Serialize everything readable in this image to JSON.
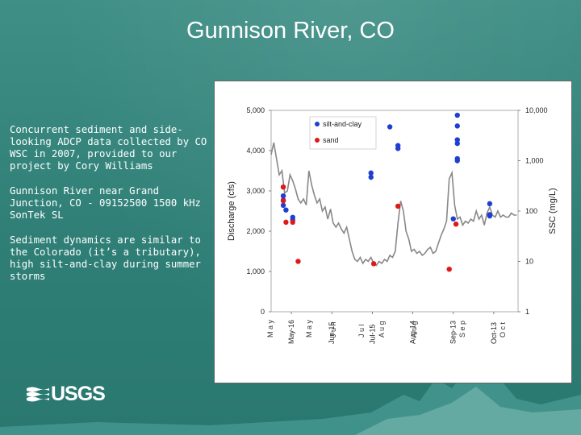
{
  "slide": {
    "title": "Gunnison River, CO",
    "bullets": [
      "Concurrent sediment and side-looking ADCP data collected by CO WSC in 2007, provided to our project by Cory Williams",
      "Gunnison River near Grand Junction, CO - 09152500 1500 kHz SonTek SL",
      "Sediment dynamics are similar to the Colorado (it’s a tributary), high silt-and-clay during summer storms"
    ],
    "logo": "USGS"
  },
  "colors": {
    "background": "#2f7f77",
    "line": "#888888",
    "silt_and_clay": "#1f3fd0",
    "sand": "#e01818"
  },
  "chart_data": {
    "type": "line",
    "title": "",
    "ylabel": "Discharge (cfs)",
    "y2label": "SSC (mg/L)",
    "ylim": [
      0,
      5000
    ],
    "y2lim": [
      1,
      10000
    ],
    "y2scale": "log",
    "yticks": [
      "0",
      "1,000",
      "2,000",
      "3,000",
      "4,000",
      "5,000"
    ],
    "y2ticks": [
      "1",
      "10",
      "100",
      "1,000",
      "10,000"
    ],
    "xlim": [
      "2007-05-01",
      "2007-10-31"
    ],
    "xtick_labels": [
      {
        "x": "2007-05-16",
        "label": "May-16"
      },
      {
        "x": "2007-06-15",
        "label": "Jun-15"
      },
      {
        "x": "2007-07-15",
        "label": "Jul-15"
      },
      {
        "x": "2007-08-14",
        "label": "Aug-14"
      },
      {
        "x": "2007-09-13",
        "label": "Sep-13"
      },
      {
        "x": "2007-10-13",
        "label": "Oct-13"
      }
    ],
    "xtick_overlap_text": [
      "M a y",
      "M a y",
      "J u n",
      "J u l",
      "A u g",
      "A u g",
      "S e p",
      "O c t"
    ],
    "legend": {
      "position": "top-left",
      "entries": [
        "silt-and-clay",
        "sand"
      ]
    },
    "grid": false,
    "series": [
      {
        "name": "Discharge",
        "type": "line",
        "axis": "left",
        "x": [
          "2007-05-01",
          "2007-05-03",
          "2007-05-05",
          "2007-05-07",
          "2007-05-09",
          "2007-05-11",
          "2007-05-13",
          "2007-05-15",
          "2007-05-17",
          "2007-05-19",
          "2007-05-21",
          "2007-05-23",
          "2007-05-25",
          "2007-05-27",
          "2007-05-29",
          "2007-05-31",
          "2007-06-02",
          "2007-06-04",
          "2007-06-06",
          "2007-06-08",
          "2007-06-10",
          "2007-06-12",
          "2007-06-14",
          "2007-06-16",
          "2007-06-18",
          "2007-06-20",
          "2007-06-22",
          "2007-06-24",
          "2007-06-26",
          "2007-06-28",
          "2007-06-30",
          "2007-07-02",
          "2007-07-04",
          "2007-07-06",
          "2007-07-08",
          "2007-07-10",
          "2007-07-12",
          "2007-07-14",
          "2007-07-16",
          "2007-07-18",
          "2007-07-20",
          "2007-07-22",
          "2007-07-24",
          "2007-07-26",
          "2007-07-28",
          "2007-07-30",
          "2007-08-01",
          "2007-08-03",
          "2007-08-05",
          "2007-08-07",
          "2007-08-09",
          "2007-08-11",
          "2007-08-13",
          "2007-08-15",
          "2007-08-17",
          "2007-08-19",
          "2007-08-21",
          "2007-08-23",
          "2007-08-25",
          "2007-08-27",
          "2007-08-29",
          "2007-08-31",
          "2007-09-02",
          "2007-09-04",
          "2007-09-06",
          "2007-09-08",
          "2007-09-10",
          "2007-09-12",
          "2007-09-14",
          "2007-09-16",
          "2007-09-18",
          "2007-09-20",
          "2007-09-22",
          "2007-09-24",
          "2007-09-26",
          "2007-09-28",
          "2007-09-30",
          "2007-10-02",
          "2007-10-04",
          "2007-10-06",
          "2007-10-08",
          "2007-10-10",
          "2007-10-12",
          "2007-10-14",
          "2007-10-16",
          "2007-10-18",
          "2007-10-20",
          "2007-10-22",
          "2007-10-24",
          "2007-10-26",
          "2007-10-28",
          "2007-10-30"
        ],
        "values": [
          3900,
          4200,
          3800,
          3400,
          3500,
          2950,
          3000,
          3400,
          3250,
          3050,
          2800,
          2700,
          2800,
          2650,
          3500,
          3150,
          2900,
          2700,
          2800,
          2500,
          2600,
          2300,
          2550,
          2200,
          2100,
          2200,
          2050,
          1950,
          2100,
          1800,
          1500,
          1300,
          1250,
          1350,
          1200,
          1300,
          1250,
          1350,
          1200,
          1150,
          1250,
          1200,
          1300,
          1250,
          1400,
          1350,
          1500,
          2200,
          2750,
          2500,
          2000,
          1800,
          1500,
          1550,
          1450,
          1500,
          1400,
          1450,
          1550,
          1600,
          1450,
          1500,
          1700,
          1900,
          2050,
          2250,
          3300,
          3450,
          2650,
          2300,
          2350,
          2150,
          2250,
          2200,
          2300,
          2250,
          2500,
          2300,
          2400,
          2150,
          2450,
          2600,
          2400,
          2350,
          2500,
          2350,
          2400,
          2350,
          2350,
          2450,
          2400,
          2400
        ]
      },
      {
        "name": "silt-and-clay",
        "type": "scatter",
        "axis": "right",
        "x": [
          "2007-05-10",
          "2007-05-10",
          "2007-05-10",
          "2007-05-12",
          "2007-05-17",
          "2007-05-17",
          "2007-07-14",
          "2007-07-14",
          "2007-07-28",
          "2007-08-03",
          "2007-08-03",
          "2007-09-13",
          "2007-09-16",
          "2007-09-16",
          "2007-09-16",
          "2007-09-16",
          "2007-09-16",
          "2007-09-16",
          "2007-10-10",
          "2007-10-10",
          "2007-10-10"
        ],
        "values": [
          200,
          165,
          130,
          105,
          75,
          67,
          570,
          470,
          4700,
          2000,
          1750,
          70,
          8000,
          4900,
          2600,
          2200,
          1100,
          1000,
          140,
          85,
          80
        ]
      },
      {
        "name": "sand",
        "type": "scatter",
        "axis": "right",
        "x": [
          "2007-05-10",
          "2007-05-10",
          "2007-05-12",
          "2007-05-17",
          "2007-05-21",
          "2007-07-16",
          "2007-08-03",
          "2007-09-10",
          "2007-09-15"
        ],
        "values": [
          300,
          160,
          60,
          60,
          10,
          9,
          125,
          7,
          55
        ]
      }
    ]
  }
}
